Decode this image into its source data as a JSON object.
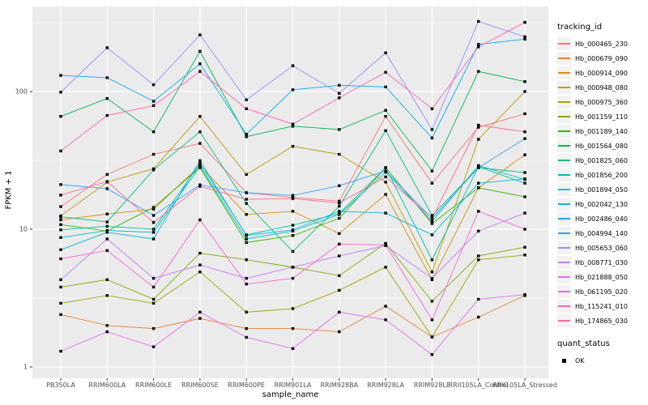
{
  "chart_data": {
    "type": "line",
    "title": "",
    "xlabel": "sample_name",
    "ylabel": "FPKM + 1",
    "y_scale": "log10",
    "ylim": [
      0.9,
      420
    ],
    "y_ticks": [
      1,
      10,
      100
    ],
    "y_minor_gridlines": [
      3.162,
      31.62,
      316.2
    ],
    "grid": "on",
    "panel_bg": "#EBEBEB",
    "grid_color": "#FFFFFF",
    "point_shape": "filled-square",
    "point_color": "#000000",
    "legend_position": "right",
    "legend_title": "tracking_id",
    "categories": [
      "PB350LA",
      "RRIM600LA",
      "RRIM600LE",
      "RRIM600SE",
      "RRIM600PE",
      "RRIM901LA",
      "RRIM928BA",
      "RRIM928LA",
      "RRIM928LE",
      "RRII105LA_Control",
      "RRII105LA_Stressed"
    ],
    "series": [
      {
        "name": "Hb_000465_230",
        "color": "#F8766D",
        "values": [
          14.6,
          25,
          35,
          42,
          18.4,
          17,
          16,
          66,
          21.6,
          55,
          69
        ]
      },
      {
        "name": "Hb_000679_090",
        "color": "#EA8331",
        "values": [
          2.4,
          2.0,
          1.9,
          2.25,
          1.9,
          1.9,
          1.8,
          2.76,
          1.65,
          2.3,
          3.3
        ]
      },
      {
        "name": "Hb_000914_090",
        "color": "#D89000",
        "values": [
          11.7,
          12.9,
          14,
          29,
          12.8,
          13.5,
          9.3,
          17.9,
          4.3,
          20,
          34.7
        ]
      },
      {
        "name": "Hb_000948_080",
        "color": "#C09B00",
        "values": [
          12.5,
          22,
          27.5,
          66,
          25,
          40,
          35,
          22,
          4.9,
          45,
          100
        ]
      },
      {
        "name": "Hb_000975_360",
        "color": "#A3A500",
        "values": [
          2.9,
          3.3,
          2.9,
          4.9,
          2.5,
          2.65,
          3.6,
          5.3,
          1.65,
          6.0,
          6.5
        ]
      },
      {
        "name": "Hb_001159_110",
        "color": "#7CAE00",
        "values": [
          3.8,
          4.3,
          3.1,
          6.7,
          6.0,
          5.3,
          4.6,
          7.9,
          3.0,
          6.4,
          7.4
        ]
      },
      {
        "name": "Hb_001189_140",
        "color": "#39B600",
        "values": [
          10.8,
          9.7,
          14.4,
          28,
          8.0,
          9.0,
          12,
          28,
          11,
          20,
          17.2
        ]
      },
      {
        "name": "Hb_001564_080",
        "color": "#00BB4E",
        "values": [
          66,
          89,
          51,
          196,
          47,
          56,
          53,
          73,
          26.5,
          140,
          118
        ]
      },
      {
        "name": "Hb_001825_060",
        "color": "#00C087",
        "values": [
          12.3,
          11.3,
          27,
          51,
          15.4,
          6.9,
          14.7,
          52,
          12.6,
          28,
          25.8
        ]
      },
      {
        "name": "Hb_001856_200",
        "color": "#00C1AB",
        "values": [
          9.9,
          10.5,
          10,
          30,
          9.1,
          10.7,
          13,
          28,
          6.0,
          28.5,
          21.6
        ]
      },
      {
        "name": "Hb_001894_050",
        "color": "#00BFC4",
        "values": [
          8.7,
          9.8,
          9.5,
          28.6,
          8.5,
          9.7,
          12.8,
          26,
          11.4,
          29,
          23
        ]
      },
      {
        "name": "Hb_002042_130",
        "color": "#00BAE0",
        "values": [
          7.1,
          9.5,
          8.5,
          31.5,
          9.0,
          9.9,
          13.5,
          13.1,
          9.1,
          21.6,
          23.2
        ]
      },
      {
        "name": "Hb_002486_040",
        "color": "#00B0F6",
        "values": [
          131,
          126,
          85,
          159,
          49,
          103,
          111,
          108,
          46,
          220,
          240
        ]
      },
      {
        "name": "Hb_004994_140",
        "color": "#35A2FF",
        "values": [
          21.1,
          19.7,
          12.6,
          21,
          18.4,
          17.6,
          20.7,
          26.5,
          12,
          28,
          45.5
        ]
      },
      {
        "name": "Hb_005653_060",
        "color": "#9590FF",
        "values": [
          99,
          208,
          112,
          258,
          87,
          154,
          97,
          191,
          53,
          323,
          250
        ]
      },
      {
        "name": "Hb_008771_030",
        "color": "#C77CFF",
        "values": [
          4.3,
          8.5,
          4.4,
          5.5,
          4.4,
          5.3,
          6.4,
          7.6,
          4.4,
          9.7,
          13.1
        ]
      },
      {
        "name": "Hb_021888_050",
        "color": "#E76BF3",
        "values": [
          1.3,
          1.8,
          1.4,
          2.5,
          1.64,
          1.36,
          2.5,
          2.2,
          1.23,
          3.1,
          3.35
        ]
      },
      {
        "name": "Hb_061195_020",
        "color": "#FA62DB",
        "values": [
          6.1,
          7.0,
          3.8,
          11.7,
          4.0,
          4.4,
          7.8,
          7.7,
          2.2,
          13.5,
          10
        ]
      },
      {
        "name": "Hb_115241_010",
        "color": "#FF62BC",
        "values": [
          37,
          67,
          79,
          140,
          75,
          58,
          90,
          138,
          75,
          211,
          318
        ]
      },
      {
        "name": "Hb_174865_030",
        "color": "#FF6A98",
        "values": [
          17.7,
          22.2,
          11.2,
          20.5,
          16.5,
          16.7,
          15.5,
          24,
          12,
          57,
          51
        ]
      }
    ],
    "quant_legend": {
      "title": "quant_status",
      "items": [
        "OK"
      ]
    }
  }
}
